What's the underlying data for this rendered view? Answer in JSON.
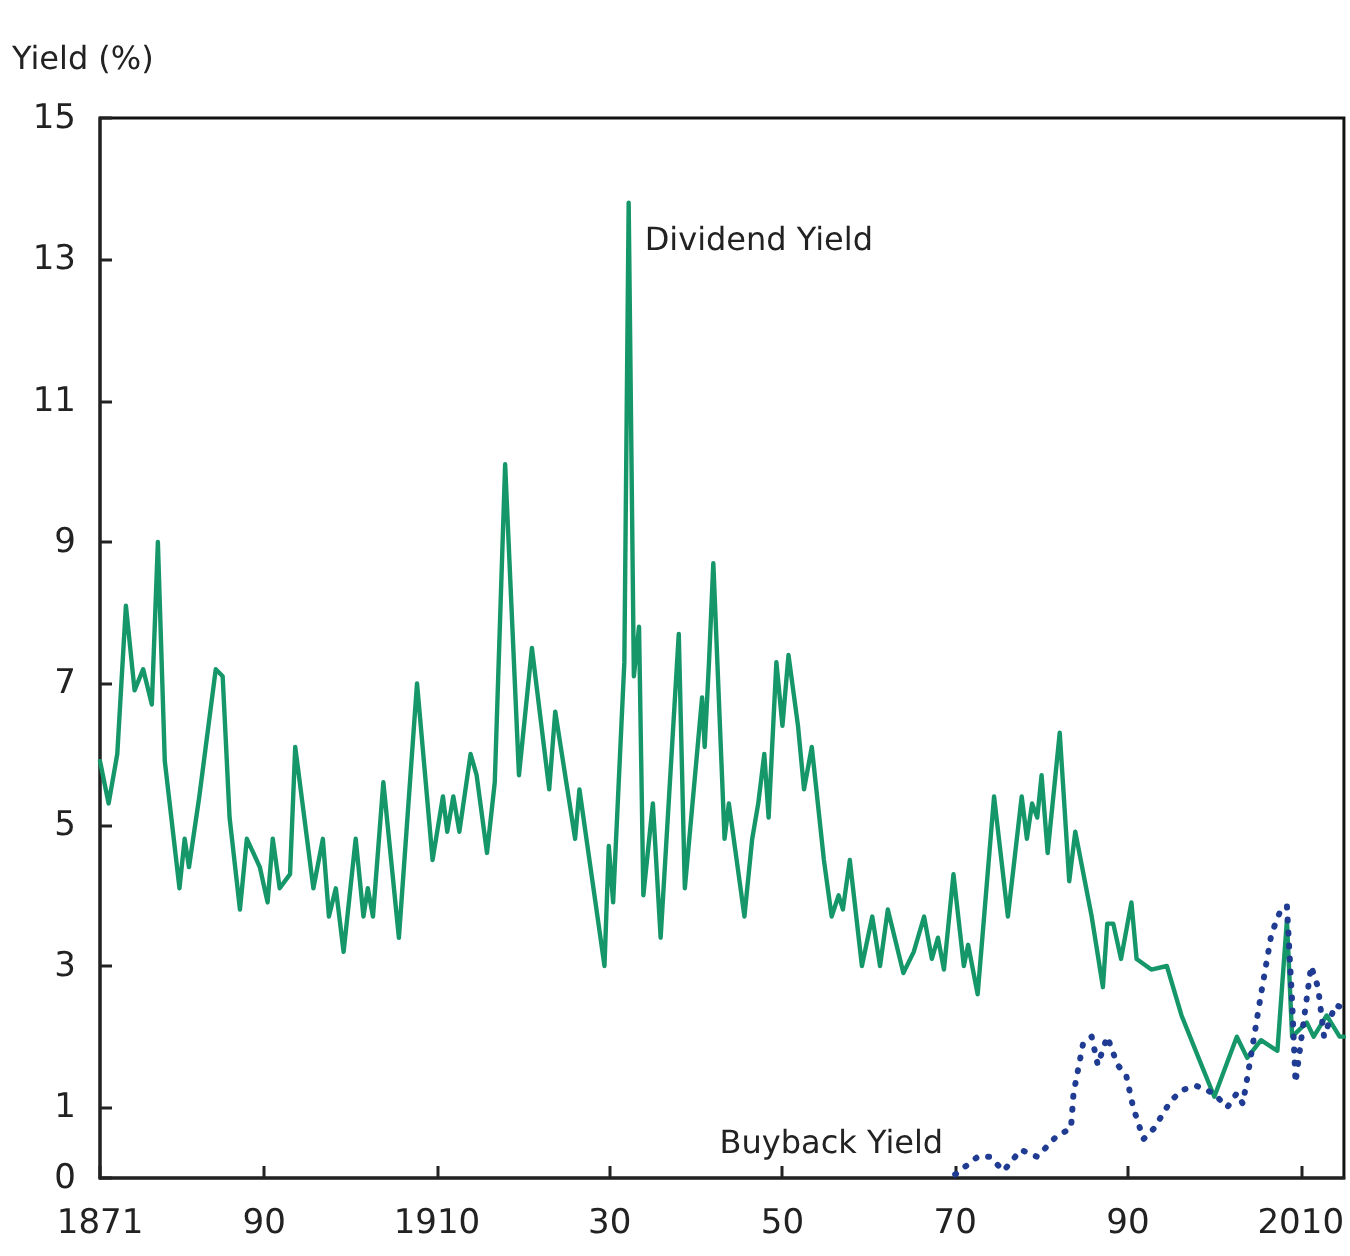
{
  "chart_data": {
    "type": "line",
    "ylabel": "Yield (%)",
    "xlim": [
      1871,
      2015
    ],
    "xticks": [
      {
        "value": 1871,
        "label": "1871"
      },
      {
        "value": 1890,
        "label": "90"
      },
      1910,
      {
        "value": 1930,
        "label": "30"
      },
      {
        "value": 1950,
        "label": "50"
      },
      {
        "value": 1970,
        "label": "70"
      },
      {
        "value": 1990,
        "label": "90"
      },
      2010
    ],
    "ylim": [
      0,
      15
    ],
    "yticks": [
      0,
      1,
      3,
      5,
      7,
      9,
      11,
      13,
      15
    ],
    "grid": false,
    "marker": "none",
    "series": [
      {
        "name": "Dividend Yield",
        "color": "#16976a",
        "line_style": "solid",
        "x": [
          1871,
          1872,
          1873,
          1874,
          1875,
          1876,
          1877,
          1877.7,
          1878.5,
          1880.2,
          1880.8,
          1881.3,
          1882.5,
          1884.4,
          1885.2,
          1886,
          1887.2,
          1888,
          1889.5,
          1890.4,
          1891,
          1891.8,
          1893,
          1893.6,
          1895.7,
          1896.8,
          1897.5,
          1898.3,
          1899.2,
          1900.6,
          1901.5,
          1902,
          1902.6,
          1903.8,
          1905.6,
          1907.7,
          1909.5,
          1910.7,
          1911.2,
          1911.9,
          1912.6,
          1913.9,
          1914.6,
          1915.8,
          1916.7,
          1917.9,
          1919.5,
          1921,
          1923,
          1923.7,
          1926,
          1926.5,
          1929.4,
          1929.9,
          1930.4,
          1931.7,
          1932.2,
          1932.8,
          1933.4,
          1933.9,
          1935,
          1935.9,
          1938,
          1938.7,
          1940.7,
          1941,
          1941.5,
          1942,
          1943.3,
          1943.8,
          1945.6,
          1946.5,
          1947.2,
          1947.9,
          1948.4,
          1949.3,
          1950,
          1950.7,
          1951.8,
          1952.5,
          1953.4,
          1954.8,
          1955.7,
          1956.5,
          1957,
          1957.8,
          1959.2,
          1960.4,
          1961.3,
          1962.2,
          1964,
          1965.2,
          1966.4,
          1967.3,
          1968,
          1968.7,
          1969.8,
          1971,
          1971.5,
          1972.6,
          1974.5,
          1976.1,
          1977.7,
          1978.3,
          1978.9,
          1979.5,
          1980,
          1980.7,
          1982.1,
          1983.2,
          1983.9,
          1985.8,
          1987.1,
          1987.6,
          1988.3,
          1989.2,
          1990.4,
          1991,
          1992.7,
          1994.5,
          1996.2,
          1998.5,
          2000,
          2002.6,
          2003.8,
          2005.4,
          2007.3,
          2008.4,
          2009,
          2010.7,
          2011.5,
          2013,
          2014.5,
          2015
        ],
        "values": [
          5.9,
          5.3,
          6.0,
          8.1,
          6.9,
          7.2,
          6.7,
          9.0,
          5.9,
          4.1,
          4.8,
          4.4,
          5.4,
          7.2,
          7.1,
          5.1,
          3.8,
          4.8,
          4.4,
          3.9,
          4.8,
          4.1,
          4.3,
          6.1,
          4.1,
          4.8,
          3.7,
          4.1,
          3.2,
          4.8,
          3.7,
          4.1,
          3.7,
          5.6,
          3.4,
          7.0,
          4.5,
          5.4,
          4.9,
          5.4,
          4.9,
          6.0,
          5.7,
          4.6,
          5.6,
          10.1,
          5.7,
          7.5,
          5.5,
          6.6,
          4.8,
          5.5,
          3.0,
          4.7,
          3.9,
          7.3,
          13.8,
          7.1,
          7.8,
          4.0,
          5.3,
          3.4,
          7.7,
          4.1,
          6.8,
          6.1,
          7.3,
          8.7,
          4.8,
          5.3,
          3.7,
          4.8,
          5.3,
          6.0,
          5.1,
          7.3,
          6.4,
          7.4,
          6.4,
          5.5,
          6.1,
          4.5,
          3.7,
          4.0,
          3.8,
          4.5,
          3.0,
          3.7,
          3.0,
          3.8,
          2.9,
          3.2,
          3.7,
          3.1,
          3.4,
          2.95,
          4.3,
          3.0,
          3.3,
          2.6,
          5.4,
          3.7,
          5.4,
          4.8,
          5.3,
          5.1,
          5.7,
          4.6,
          6.3,
          4.2,
          4.9,
          3.7,
          2.7,
          3.6,
          3.6,
          3.1,
          3.9,
          3.1,
          2.95,
          3.0,
          2.3,
          1.6,
          1.15,
          2.0,
          1.7,
          1.95,
          1.8,
          3.65,
          2.0,
          2.2,
          2.0,
          2.3,
          2.0,
          2.0
        ]
      },
      {
        "name": "Buyback Yield",
        "color": "#1f3b92",
        "line_style": "dotted",
        "x": [
          1970,
          1972.6,
          1974,
          1975.6,
          1977.6,
          1979.5,
          1981.8,
          1983.4,
          1983.7,
          1984.8,
          1985.8,
          1986.5,
          1987.6,
          1988.8,
          1989.8,
          1990.6,
          1991.8,
          1993,
          1995,
          1996.4,
          1998,
          1999.9,
          2001.5,
          2002.6,
          2003.3,
          2004.2,
          2005.4,
          2006.6,
          2007.7,
          2008.4,
          2009,
          2009.4,
          2010.1,
          2011.2,
          2012,
          2012.7,
          2014,
          2015
        ],
        "values": [
          0.05,
          0.3,
          0.3,
          0.1,
          0.4,
          0.3,
          0.6,
          0.7,
          1.2,
          1.9,
          2.0,
          1.6,
          2.0,
          1.6,
          1.45,
          1.0,
          0.55,
          0.7,
          1.1,
          1.25,
          1.3,
          1.2,
          1.0,
          1.2,
          1.05,
          1.7,
          2.6,
          3.45,
          3.8,
          3.85,
          2.5,
          1.35,
          2.0,
          3.0,
          2.7,
          2.0,
          2.45,
          2.4
        ]
      }
    ]
  }
}
